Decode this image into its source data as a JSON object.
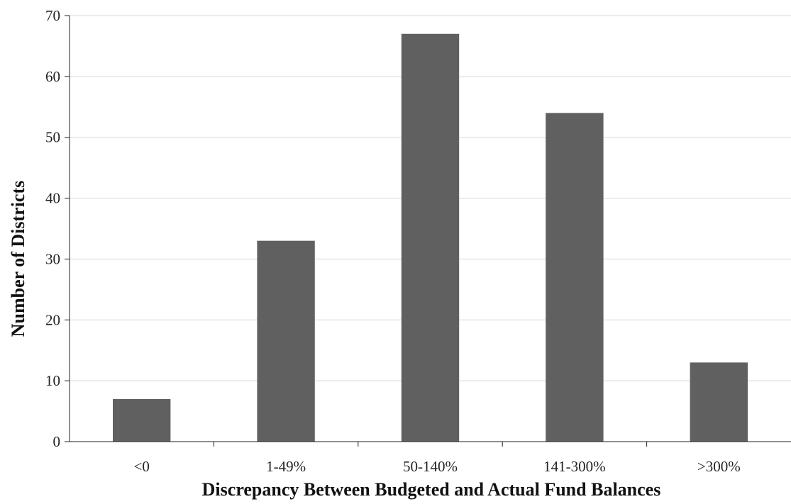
{
  "chart_data": {
    "type": "bar",
    "title": "",
    "xlabel": "Discrepancy Between Budgeted and Actual Fund Balances",
    "ylabel": "Number of Districts",
    "categories": [
      "<0",
      "1-49%",
      "50-140%",
      "141-300%",
      ">300%"
    ],
    "values": [
      7,
      33,
      67,
      54,
      13
    ],
    "ylim": [
      0,
      70
    ],
    "yticks": [
      0,
      10,
      20,
      30,
      40,
      50,
      60,
      70
    ],
    "grid": true,
    "legend": "none",
    "bar_color": "#606060"
  }
}
